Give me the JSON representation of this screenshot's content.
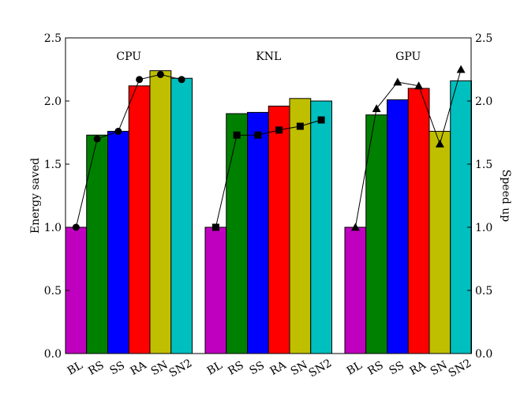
{
  "chart_data": {
    "type": "bar",
    "ylabel": "Energy saved",
    "y2label": "Speed up",
    "ylim": [
      0,
      2.5
    ],
    "y2lim": [
      0,
      2.5
    ],
    "yticks": [
      "0.0",
      "0.5",
      "1.0",
      "1.5",
      "2.0",
      "2.5"
    ],
    "y2ticks": [
      "0.0",
      "0.5",
      "1.0",
      "1.5",
      "2.0",
      "2.5"
    ],
    "grid": false,
    "categories": [
      "BL",
      "RS",
      "SS",
      "RA",
      "SN",
      "SN2"
    ],
    "bar_colors": [
      "#bf00bf",
      "#008000",
      "#0000ff",
      "#ff0000",
      "#bfbf00",
      "#00bfbf"
    ],
    "groups": [
      {
        "name": "CPU",
        "energy_saved": [
          1.0,
          1.73,
          1.76,
          2.12,
          2.24,
          2.18
        ],
        "speed_up": [
          1.0,
          1.7,
          1.76,
          2.17,
          2.21,
          2.17
        ],
        "marker": "circle"
      },
      {
        "name": "KNL",
        "energy_saved": [
          1.0,
          1.9,
          1.91,
          1.96,
          2.02,
          2.0
        ],
        "speed_up": [
          1.0,
          1.73,
          1.73,
          1.77,
          1.8,
          1.85
        ],
        "marker": "square"
      },
      {
        "name": "GPU",
        "energy_saved": [
          1.0,
          1.89,
          2.01,
          2.1,
          1.76,
          2.16
        ],
        "speed_up": [
          1.0,
          1.94,
          2.15,
          2.12,
          1.66,
          2.25
        ],
        "marker": "triangle"
      }
    ]
  }
}
